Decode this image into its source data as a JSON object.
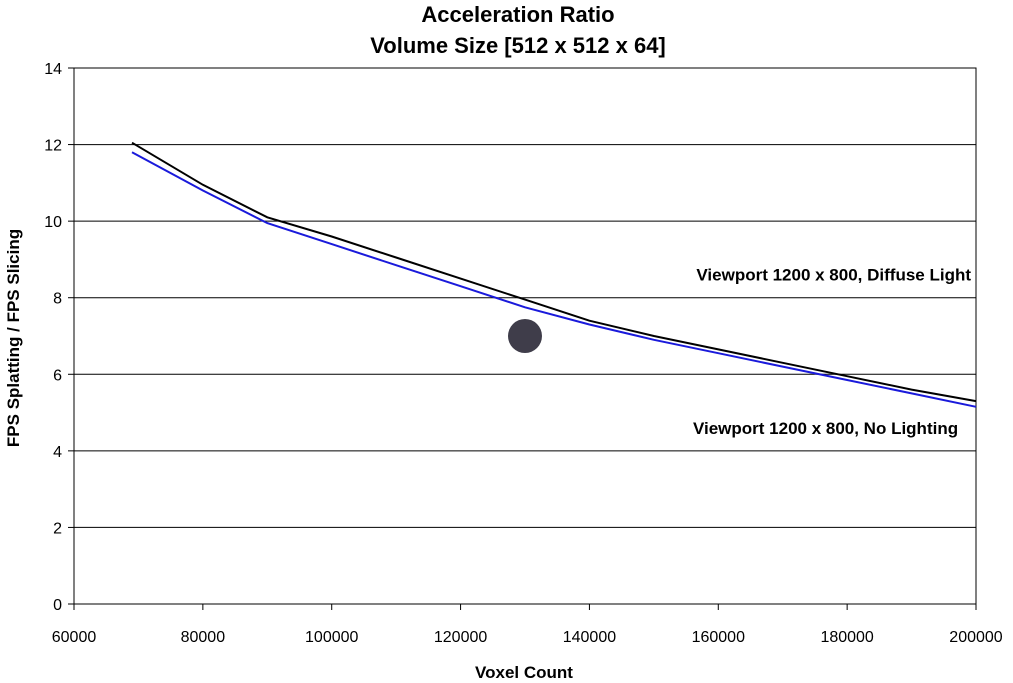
{
  "chart_data": {
    "type": "line",
    "title": "Acceleration Ratio",
    "subtitle": "Volume Size [512 x 512 x 64]",
    "xlabel": "Voxel Count",
    "ylabel": "FPS Splatting / FPS Slicing",
    "xlim": [
      60000,
      200000
    ],
    "ylim": [
      0,
      14
    ],
    "xticks": [
      "60000",
      "80000",
      "100000",
      "120000",
      "140000",
      "160000",
      "180000",
      "200000"
    ],
    "yticks": [
      "0",
      "2",
      "4",
      "6",
      "8",
      "10",
      "12",
      "14"
    ],
    "grid": "horizontal",
    "series": [
      {
        "name": "Viewport 1200 x 800, Diffuse Light",
        "color": "#000000",
        "x": [
          69000,
          80000,
          90000,
          100000,
          110000,
          120000,
          130000,
          140000,
          150000,
          160000,
          170000,
          180000,
          190000,
          200000
        ],
        "y": [
          12.05,
          10.95,
          10.1,
          9.6,
          9.05,
          8.5,
          7.95,
          7.4,
          7.0,
          6.65,
          6.3,
          5.95,
          5.6,
          5.3
        ]
      },
      {
        "name": "Viewport 1200 x 800, No Lighting",
        "color": "#1a1adb",
        "x": [
          69000,
          80000,
          90000,
          100000,
          110000,
          120000,
          130000,
          140000,
          150000,
          160000,
          170000,
          180000,
          190000,
          200000
        ],
        "y": [
          11.8,
          10.8,
          9.95,
          9.4,
          8.85,
          8.3,
          7.75,
          7.3,
          6.9,
          6.55,
          6.2,
          5.85,
          5.5,
          5.15
        ]
      }
    ],
    "annotations": [
      {
        "text": "Viewport 1200 x 800, Diffuse Light",
        "x": 200000,
        "y": 8.6,
        "anchor": "end"
      },
      {
        "text": "Viewport 1200 x 800, No Lighting",
        "x": 198000,
        "y": 4.6,
        "anchor": "end"
      }
    ],
    "marker": {
      "x": 130000,
      "y": 7.0,
      "color": "#3f3d4a"
    }
  }
}
